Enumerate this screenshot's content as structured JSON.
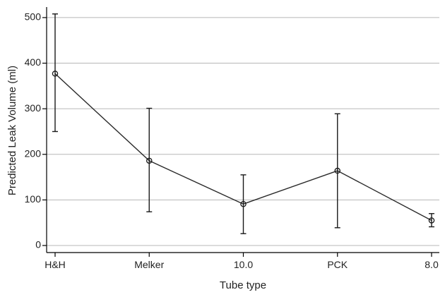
{
  "chart_data": {
    "type": "line",
    "title": "",
    "xlabel": "Tube type",
    "ylabel": "Predicted Leak Volume (ml)",
    "categories": [
      "H&H",
      "Melker",
      "10.0",
      "PCK",
      "8.0"
    ],
    "ylim": [
      0,
      520
    ],
    "yticks": [
      0,
      100,
      200,
      300,
      400,
      500
    ],
    "grid": true,
    "series": [
      {
        "values": [
          377,
          186,
          91,
          164,
          55
        ],
        "lower": [
          250,
          74,
          26,
          39,
          41
        ],
        "upper": [
          508,
          301,
          155,
          289,
          70
        ]
      }
    ],
    "colors": {
      "line": "#2a2a2a",
      "grid": "#b7b7b7",
      "axis": "#000000"
    }
  }
}
